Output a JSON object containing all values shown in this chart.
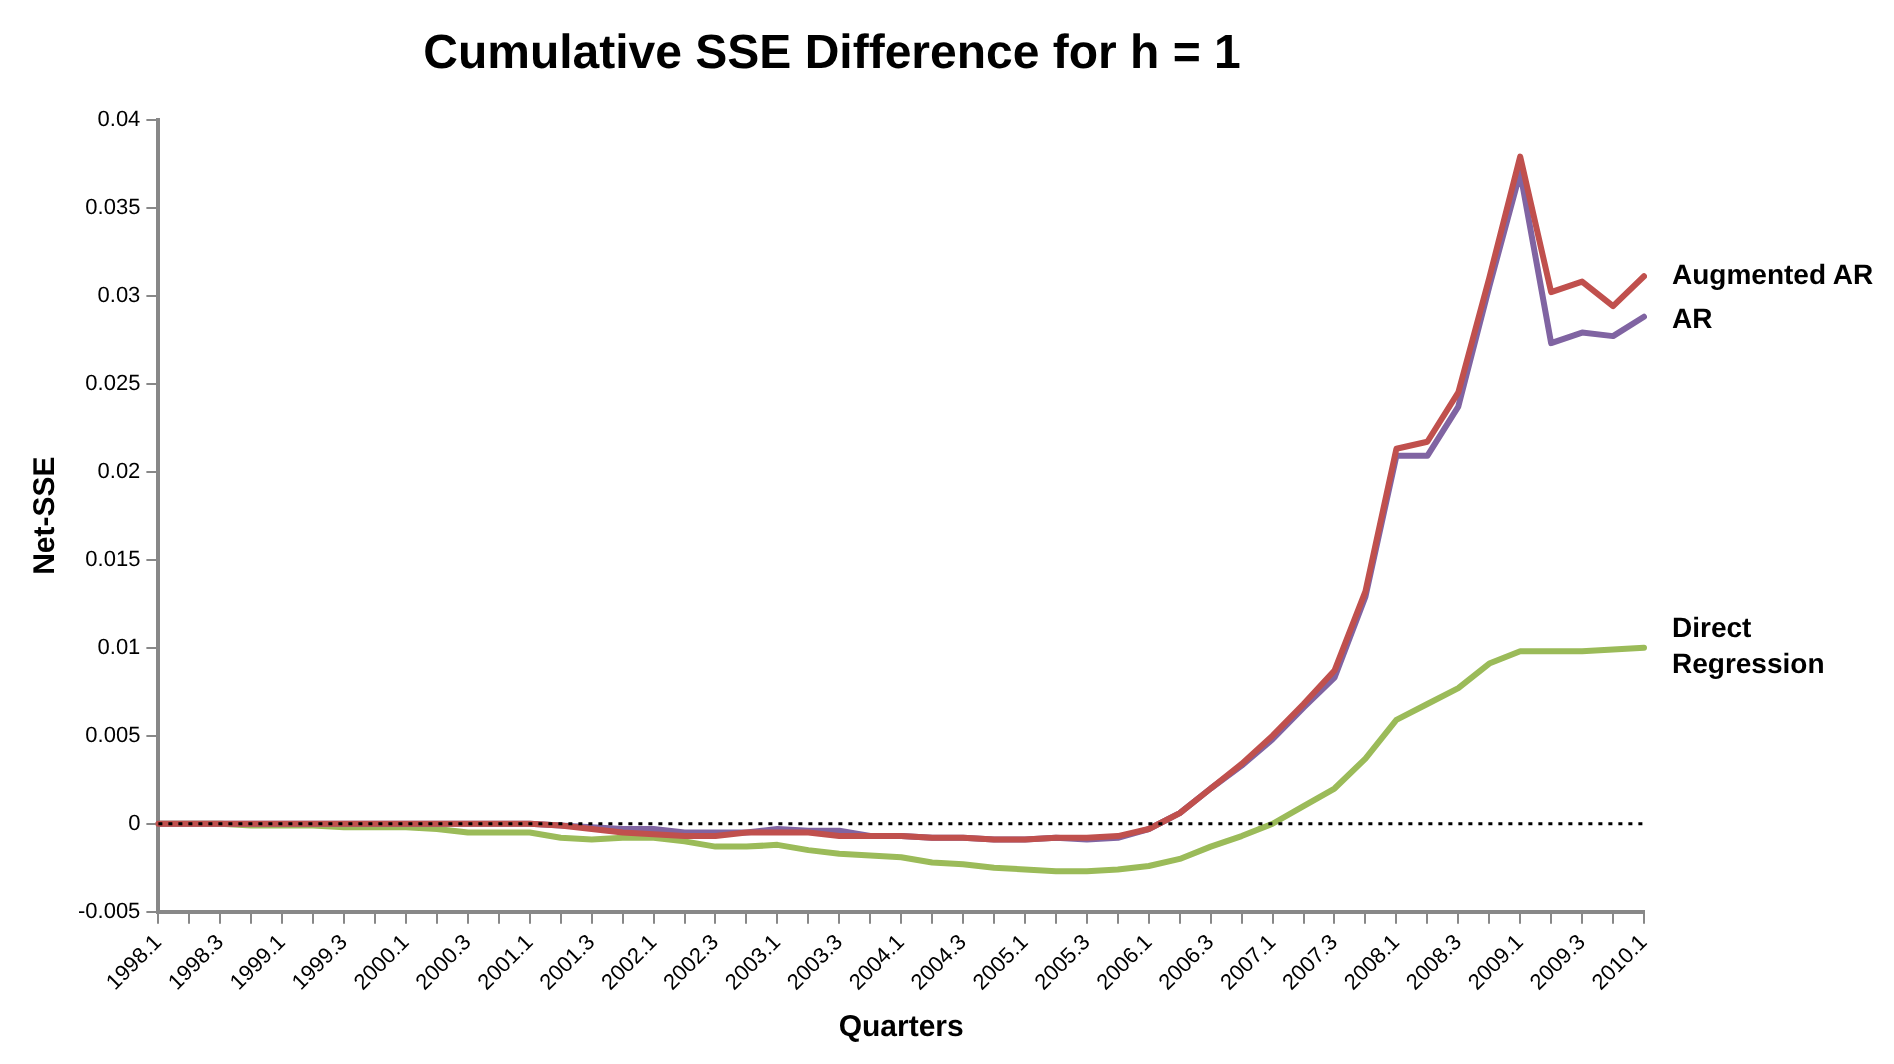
{
  "chart_data": {
    "type": "line",
    "title": "Cumulative SSE Difference for h = 1",
    "xlabel": "Quarters",
    "ylabel": "Net-SSE",
    "categories": [
      "1998.1",
      null,
      "1998.3",
      null,
      "1999.1",
      null,
      "1999.3",
      null,
      "2000.1",
      null,
      "2000.3",
      null,
      "2001.1",
      null,
      "2001.3",
      null,
      "2002.1",
      null,
      "2002.3",
      null,
      "2003.1",
      null,
      "2003.3",
      null,
      "2004.1",
      null,
      "2004.3",
      null,
      "2005.1",
      null,
      "2005.3",
      null,
      "2006.1",
      null,
      "2006.3",
      null,
      "2007.1",
      null,
      "2007.3",
      null,
      "2008.1",
      null,
      "2008.3",
      null,
      "2009.1",
      null,
      "2009.3",
      null,
      "2010.1"
    ],
    "series": [
      {
        "name": "Augmented AR",
        "color": "#c0504d",
        "values": [
          0,
          0,
          0,
          0,
          0,
          0,
          0,
          0,
          0,
          0,
          0,
          0,
          0,
          -0.0001,
          -0.0003,
          -0.0005,
          -0.0006,
          -0.0007,
          -0.0007,
          -0.0005,
          -0.0005,
          -0.0005,
          -0.0007,
          -0.0007,
          -0.0007,
          -0.0008,
          -0.0008,
          -0.0009,
          -0.0009,
          -0.0008,
          -0.0008,
          -0.0007,
          -0.0003,
          0.0006,
          0.002,
          0.0034,
          0.005,
          0.0068,
          0.0087,
          0.0132,
          0.0213,
          0.0217,
          0.0245,
          0.031,
          0.0379,
          0.0302,
          0.0308,
          0.0294,
          0.0311
        ]
      },
      {
        "name": "AR",
        "color": "#8064a2",
        "values": [
          0,
          0,
          0,
          0,
          0,
          0,
          0,
          0,
          0,
          0,
          0,
          0,
          0,
          -0.0001,
          -0.0002,
          -0.0003,
          -0.0003,
          -0.0005,
          -0.0005,
          -0.0005,
          -0.0003,
          -0.0004,
          -0.0004,
          -0.0007,
          -0.0007,
          -0.0008,
          -0.0008,
          -0.0009,
          -0.0009,
          -0.0008,
          -0.0009,
          -0.0008,
          -0.0003,
          0.0006,
          0.002,
          0.0033,
          0.0048,
          0.0066,
          0.0083,
          0.0129,
          0.0209,
          0.0209,
          0.0237,
          0.0305,
          0.037,
          0.0273,
          0.0279,
          0.0277,
          0.0288
        ]
      },
      {
        "name": "Direct Regression",
        "color": "#9bbb59",
        "values": [
          0,
          0,
          0,
          -0.0001,
          -0.0001,
          -0.0001,
          -0.0002,
          -0.0002,
          -0.0002,
          -0.0003,
          -0.0005,
          -0.0005,
          -0.0005,
          -0.0008,
          -0.0009,
          -0.0008,
          -0.0008,
          -0.001,
          -0.0013,
          -0.0013,
          -0.0012,
          -0.0015,
          -0.0017,
          -0.0018,
          -0.0019,
          -0.0022,
          -0.0023,
          -0.0025,
          -0.0026,
          -0.0027,
          -0.0027,
          -0.0026,
          -0.0024,
          -0.002,
          -0.0013,
          -0.0007,
          0,
          0.001,
          0.002,
          0.0037,
          0.0059,
          0.0068,
          0.0077,
          0.0091,
          0.0098,
          0.0098,
          0.0098,
          0.0099,
          0.01
        ]
      }
    ],
    "ylim": [
      -0.005,
      0.04
    ],
    "yticks": [
      -0.005,
      0,
      0.005,
      0.01,
      0.015,
      0.02,
      0.025,
      0.03,
      0.035,
      0.04
    ],
    "grid": false,
    "legend": false,
    "marker": "none",
    "line_style": "solid",
    "ref_lines": [
      {
        "axis": "y",
        "value": 0,
        "color": "#000000",
        "line_style": "dotted"
      }
    ]
  }
}
